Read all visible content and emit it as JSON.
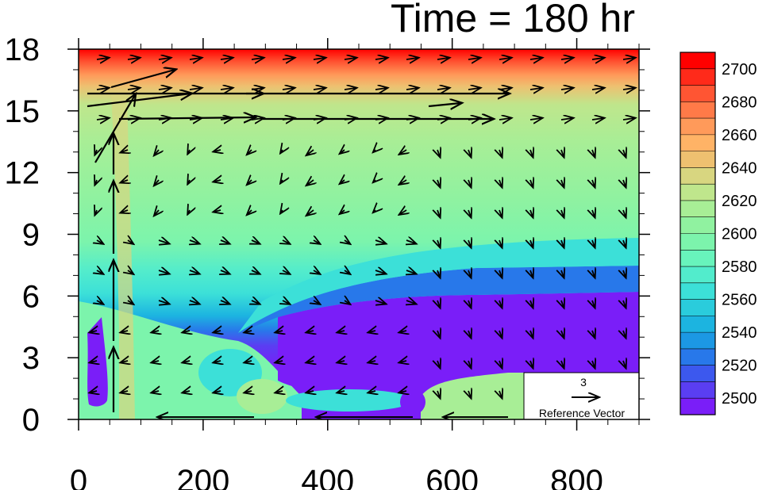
{
  "chart_data": {
    "type": "contour-vector",
    "title": "Time = 180 hr",
    "x_ticks": [
      "0",
      "200",
      "400",
      "600",
      "800"
    ],
    "x_tick_values": [
      0,
      200,
      400,
      600,
      800
    ],
    "xlim": [
      0,
      900
    ],
    "y_ticks": [
      "0",
      "3",
      "6",
      "9",
      "12",
      "15",
      "18"
    ],
    "y_tick_values": [
      0,
      3,
      6,
      9,
      12,
      15,
      18
    ],
    "ylim": [
      0,
      18
    ],
    "colorbar": {
      "labels": [
        "2700",
        "2680",
        "2660",
        "2640",
        "2620",
        "2600",
        "2580",
        "2560",
        "2540",
        "2520",
        "2500"
      ],
      "label_values": [
        2700,
        2680,
        2660,
        2640,
        2620,
        2600,
        2580,
        2560,
        2540,
        2520,
        2500
      ],
      "min": 2490,
      "max": 2710,
      "step": 10,
      "colors_top_to_bottom": [
        "#ff0000",
        "#ff2a1a",
        "#ff5533",
        "#ff7a48",
        "#ff9a5a",
        "#ffb366",
        "#eec070",
        "#d8d680",
        "#bfe68c",
        "#a8ee96",
        "#90f2a0",
        "#7cf4ac",
        "#68f4bc",
        "#52eccc",
        "#3ce0d8",
        "#2accdc",
        "#1cb4e0",
        "#1c98e4",
        "#2878ea",
        "#3c58ee",
        "#5a3ef2",
        "#7a1ef8"
      ]
    },
    "reference_vector": {
      "value": "3",
      "label": "Reference Vector"
    }
  }
}
